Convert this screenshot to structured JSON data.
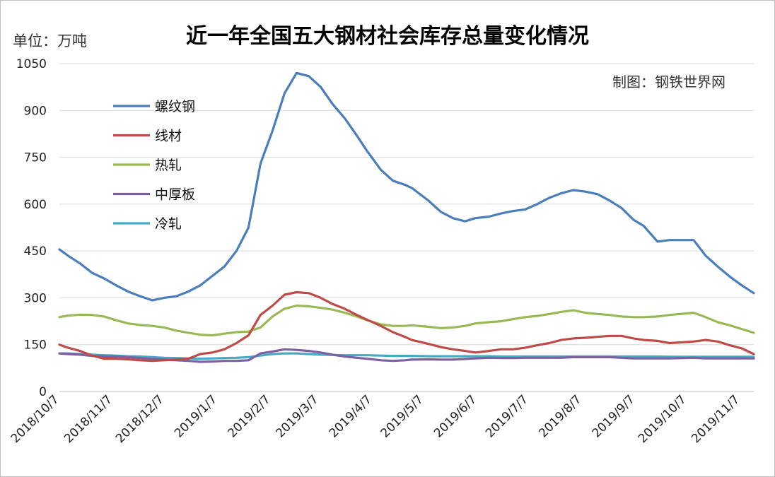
{
  "title": "近一年全国五大钢材社会库存总量变化情况",
  "unit_label": "单位：万吨",
  "credit": "制图：钢铁世界网",
  "chart_data": {
    "type": "line",
    "title": "近一年全国五大钢材社会库存总量变化情况",
    "ylabel": "单位：万吨",
    "ylim": [
      0,
      1050
    ],
    "yticks": [
      0,
      150,
      300,
      450,
      600,
      750,
      900,
      1050
    ],
    "grid": true,
    "legend_position": "top-left",
    "xtick_labels": [
      "2018/10/7",
      "2018/11/7",
      "2018/12/7",
      "2019/1/7",
      "2019/2/7",
      "2019/3/7",
      "2019/4/7",
      "2019/5/7",
      "2019/6/7",
      "2019/7/7",
      "2019/8/7",
      "2019/9/7",
      "2019/10/7",
      "2019/11/7"
    ],
    "x": [
      "2018/10/7",
      "2018/10/12",
      "2018/10/19",
      "2018/10/26",
      "2018/11/2",
      "2018/11/9",
      "2018/11/16",
      "2018/11/23",
      "2018/11/30",
      "2018/12/7",
      "2018/12/14",
      "2018/12/21",
      "2018/12/28",
      "2019/1/4",
      "2019/1/11",
      "2019/1/18",
      "2019/1/25",
      "2019/2/1",
      "2019/2/8",
      "2019/2/15",
      "2019/2/22",
      "2019/3/1",
      "2019/3/8",
      "2019/3/15",
      "2019/3/22",
      "2019/3/29",
      "2019/4/4",
      "2019/4/12",
      "2019/4/19",
      "2019/4/26",
      "2019/4/30",
      "2019/5/10",
      "2019/5/17",
      "2019/5/24",
      "2019/5/31",
      "2019/6/6",
      "2019/6/14",
      "2019/6/21",
      "2019/6/28",
      "2019/7/5",
      "2019/7/12",
      "2019/7/19",
      "2019/7/26",
      "2019/8/2",
      "2019/8/9",
      "2019/8/16",
      "2019/8/23",
      "2019/8/30",
      "2019/9/6",
      "2019/9/12",
      "2019/9/20",
      "2019/9/27",
      "2019/10/11",
      "2019/10/18",
      "2019/10/25",
      "2019/11/1",
      "2019/11/8",
      "2019/11/15"
    ],
    "series": [
      {
        "name": "螺纹钢",
        "color": "#4a7ebb",
        "values": [
          455,
          435,
          410,
          380,
          362,
          340,
          320,
          305,
          292,
          300,
          305,
          320,
          340,
          370,
          400,
          450,
          525,
          730,
          835,
          955,
          1020,
          1010,
          975,
          920,
          875,
          820,
          770,
          710,
          675,
          662,
          652,
          610,
          575,
          555,
          545,
          555,
          560,
          570,
          578,
          583,
          600,
          620,
          635,
          645,
          640,
          632,
          612,
          588,
          550,
          530,
          480,
          485,
          485,
          435,
          400,
          368,
          340,
          315
        ]
      },
      {
        "name": "线材",
        "color": "#be4b48",
        "values": [
          150,
          140,
          130,
          115,
          105,
          105,
          103,
          100,
          98,
          100,
          102,
          105,
          120,
          125,
          135,
          155,
          180,
          245,
          275,
          310,
          318,
          315,
          300,
          280,
          265,
          245,
          230,
          210,
          190,
          175,
          165,
          152,
          142,
          135,
          130,
          125,
          130,
          135,
          135,
          140,
          148,
          155,
          165,
          170,
          172,
          175,
          178,
          178,
          170,
          165,
          162,
          155,
          160,
          165,
          160,
          148,
          138,
          120
        ]
      },
      {
        "name": "热轧",
        "color": "#98b954",
        "values": [
          238,
          243,
          246,
          245,
          240,
          228,
          218,
          213,
          210,
          205,
          195,
          188,
          182,
          180,
          185,
          190,
          192,
          205,
          240,
          265,
          275,
          273,
          268,
          262,
          252,
          240,
          228,
          215,
          210,
          210,
          212,
          207,
          203,
          205,
          210,
          218,
          222,
          225,
          232,
          238,
          242,
          248,
          255,
          260,
          252,
          248,
          245,
          240,
          238,
          238,
          240,
          245,
          252,
          238,
          222,
          212,
          200,
          188
        ]
      },
      {
        "name": "中厚板",
        "color": "#7d60a0",
        "values": [
          122,
          120,
          118,
          114,
          112,
          112,
          110,
          107,
          104,
          102,
          100,
          98,
          95,
          96,
          98,
          98,
          100,
          122,
          128,
          135,
          133,
          130,
          125,
          118,
          112,
          108,
          105,
          100,
          98,
          100,
          102,
          103,
          102,
          102,
          104,
          106,
          108,
          107,
          107,
          108,
          108,
          108,
          108,
          110,
          110,
          110,
          110,
          108,
          106,
          106,
          106,
          106,
          108,
          106,
          106,
          106,
          106,
          106
        ]
      },
      {
        "name": "冷轧",
        "color": "#46aac5",
        "values": [
          122,
          122,
          120,
          118,
          116,
          115,
          113,
          112,
          110,
          108,
          107,
          106,
          105,
          106,
          107,
          108,
          110,
          115,
          120,
          122,
          122,
          120,
          118,
          117,
          116,
          116,
          116,
          115,
          114,
          114,
          114,
          113,
          113,
          113,
          113,
          113,
          113,
          112,
          112,
          112,
          112,
          112,
          112,
          112,
          112,
          112,
          112,
          112,
          112,
          112,
          112,
          111,
          111,
          111,
          111,
          111,
          111,
          111
        ]
      }
    ]
  }
}
